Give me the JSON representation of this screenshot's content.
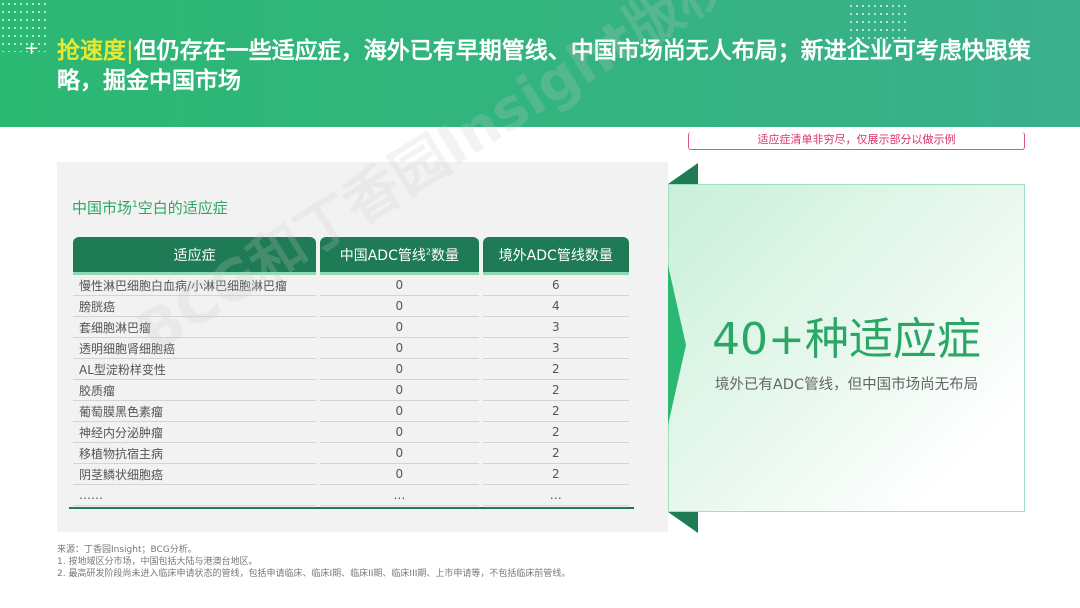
{
  "header": {
    "highlight": "抢速度",
    "separator": "|",
    "title": "但仍存在一些适应症，海外已有早期管线、中国市场尚无人布局；新进企业可考虑快跟策略，掘金中国市场",
    "plus": "+"
  },
  "note": "适应症清单非穷尽，仅展示部分以做示例",
  "panel": {
    "title": "中国市场",
    "title_sup": "1",
    "title_rest": "空白的适应症"
  },
  "table": {
    "headers": [
      {
        "text": "适应症",
        "sup": ""
      },
      {
        "text": "中国ADC管线",
        "sup": "2",
        "rest": "数量"
      },
      {
        "text": "境外ADC管线数量",
        "sup": ""
      }
    ],
    "rows": [
      [
        "慢性淋巴细胞白血病/小淋巴细胞淋巴瘤",
        "0",
        "6"
      ],
      [
        "膀胱癌",
        "0",
        "4"
      ],
      [
        "套细胞淋巴瘤",
        "0",
        "3"
      ],
      [
        "透明细胞肾细胞癌",
        "0",
        "3"
      ],
      [
        "AL型淀粉样变性",
        "0",
        "2"
      ],
      [
        "胶质瘤",
        "0",
        "2"
      ],
      [
        "葡萄膜黑色素瘤",
        "0",
        "2"
      ],
      [
        "神经内分泌肿瘤",
        "0",
        "2"
      ],
      [
        "移植物抗宿主病",
        "0",
        "2"
      ],
      [
        "阴茎鳞状细胞癌",
        "0",
        "2"
      ],
      [
        "……",
        "…",
        "…"
      ]
    ]
  },
  "callout": {
    "big": "40+种适应症",
    "sub": "境外已有ADC管线，但中国市场尚无布局"
  },
  "footer": [
    "来源：丁香园Insight；BCG分析。",
    "1. 按地域区分市场，中国包括大陆与港澳台地区。",
    "2. 最高研发阶段尚未进入临床申请状态的管线，包括申请临床、临床I期、临床II期、临床III期、上市申请等，不包括临床前管线。"
  ],
  "watermark": "BCG和丁香园Insight版权所有",
  "colors": {
    "brand_green": "#2bb872",
    "dark_green": "#1e7b55",
    "highlight_yellow": "#e6e832",
    "note_pink": "#d9346a"
  }
}
